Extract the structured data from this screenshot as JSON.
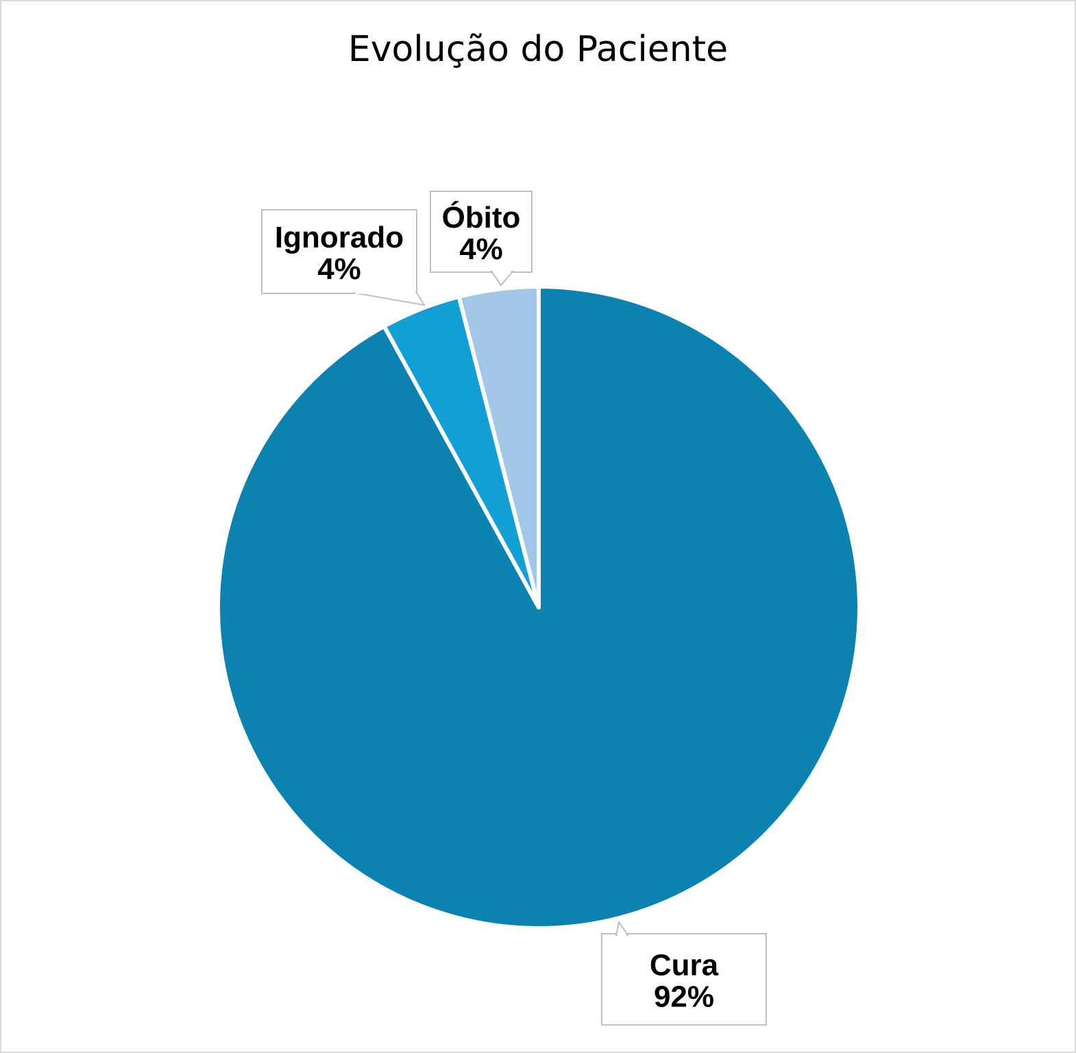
{
  "chart_data": {
    "type": "pie",
    "title": "Evolução do Paciente",
    "slices": [
      {
        "name": "Cura",
        "value": 92,
        "label": "92%",
        "color": "#0b82b0"
      },
      {
        "name": "Ignorado",
        "value": 4,
        "label": "4%",
        "color": "#129fd6"
      },
      {
        "name": "Óbito",
        "value": 4,
        "label": "4%",
        "color": "#a3c7e6"
      }
    ],
    "start_angle_deg": 0,
    "direction": "clockwise",
    "legend": "none",
    "slice_border_color": "#ffffff",
    "callout_border_color": "#bfbfbf"
  }
}
